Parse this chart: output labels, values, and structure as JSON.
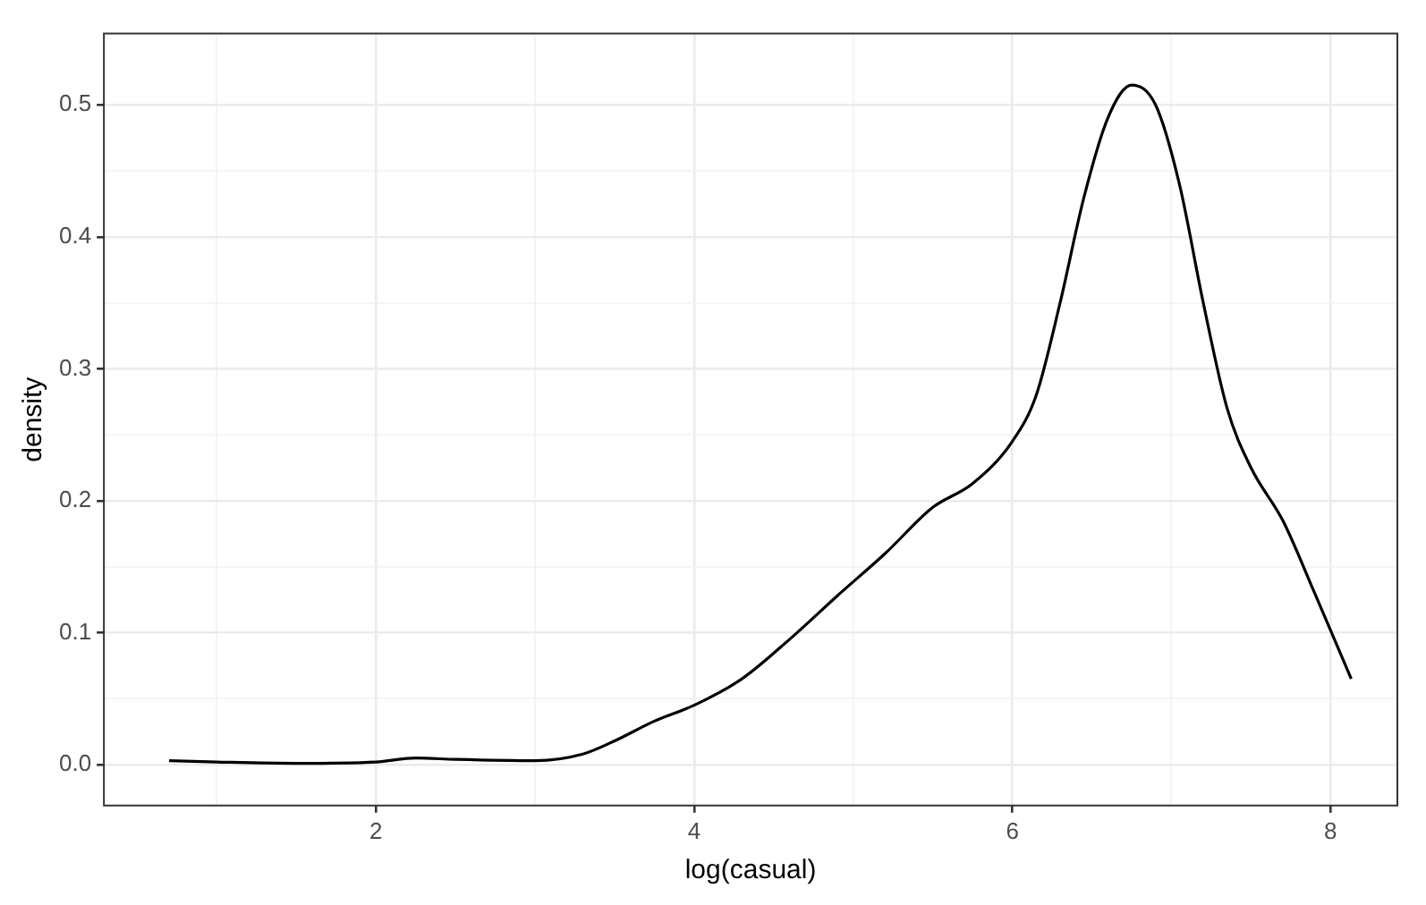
{
  "chart_data": {
    "type": "line",
    "xlabel": "log(casual)",
    "ylabel": "density",
    "x": [
      0.7,
      1.0,
      1.5,
      2.0,
      2.25,
      2.5,
      3.0,
      3.3,
      3.5,
      3.75,
      4.0,
      4.3,
      4.6,
      4.9,
      5.2,
      5.5,
      5.75,
      6.0,
      6.15,
      6.3,
      6.45,
      6.6,
      6.75,
      6.9,
      7.05,
      7.2,
      7.35,
      7.5,
      7.7,
      7.9,
      8.13
    ],
    "series": [
      {
        "color": "#000000",
        "values": [
          0.003,
          0.002,
          0.001,
          0.002,
          0.005,
          0.004,
          0.003,
          0.008,
          0.018,
          0.033,
          0.045,
          0.065,
          0.095,
          0.128,
          0.16,
          0.195,
          0.213,
          0.245,
          0.28,
          0.35,
          0.43,
          0.49,
          0.515,
          0.5,
          0.44,
          0.35,
          0.27,
          0.225,
          0.185,
          0.13,
          0.065
        ]
      }
    ],
    "xlim": [
      0.29,
      8.42
    ],
    "ylim": [
      -0.031,
      0.554
    ],
    "xticks": [
      {
        "value": 1,
        "label": null
      },
      2,
      {
        "value": 3,
        "label": null
      },
      4,
      {
        "value": 5,
        "label": null
      },
      6,
      {
        "value": 7,
        "label": null
      },
      8
    ],
    "yticks": [
      "0.0",
      {
        "value": 0.05,
        "label": null
      },
      0.1,
      {
        "value": 0.15,
        "label": null
      },
      0.2,
      {
        "value": 0.25,
        "label": null
      },
      0.3,
      {
        "value": 0.35,
        "label": null
      },
      0.4,
      {
        "value": 0.45,
        "label": null
      },
      0.5
    ],
    "grid": true,
    "legend": false,
    "marker": "none",
    "line_style": "solid"
  }
}
